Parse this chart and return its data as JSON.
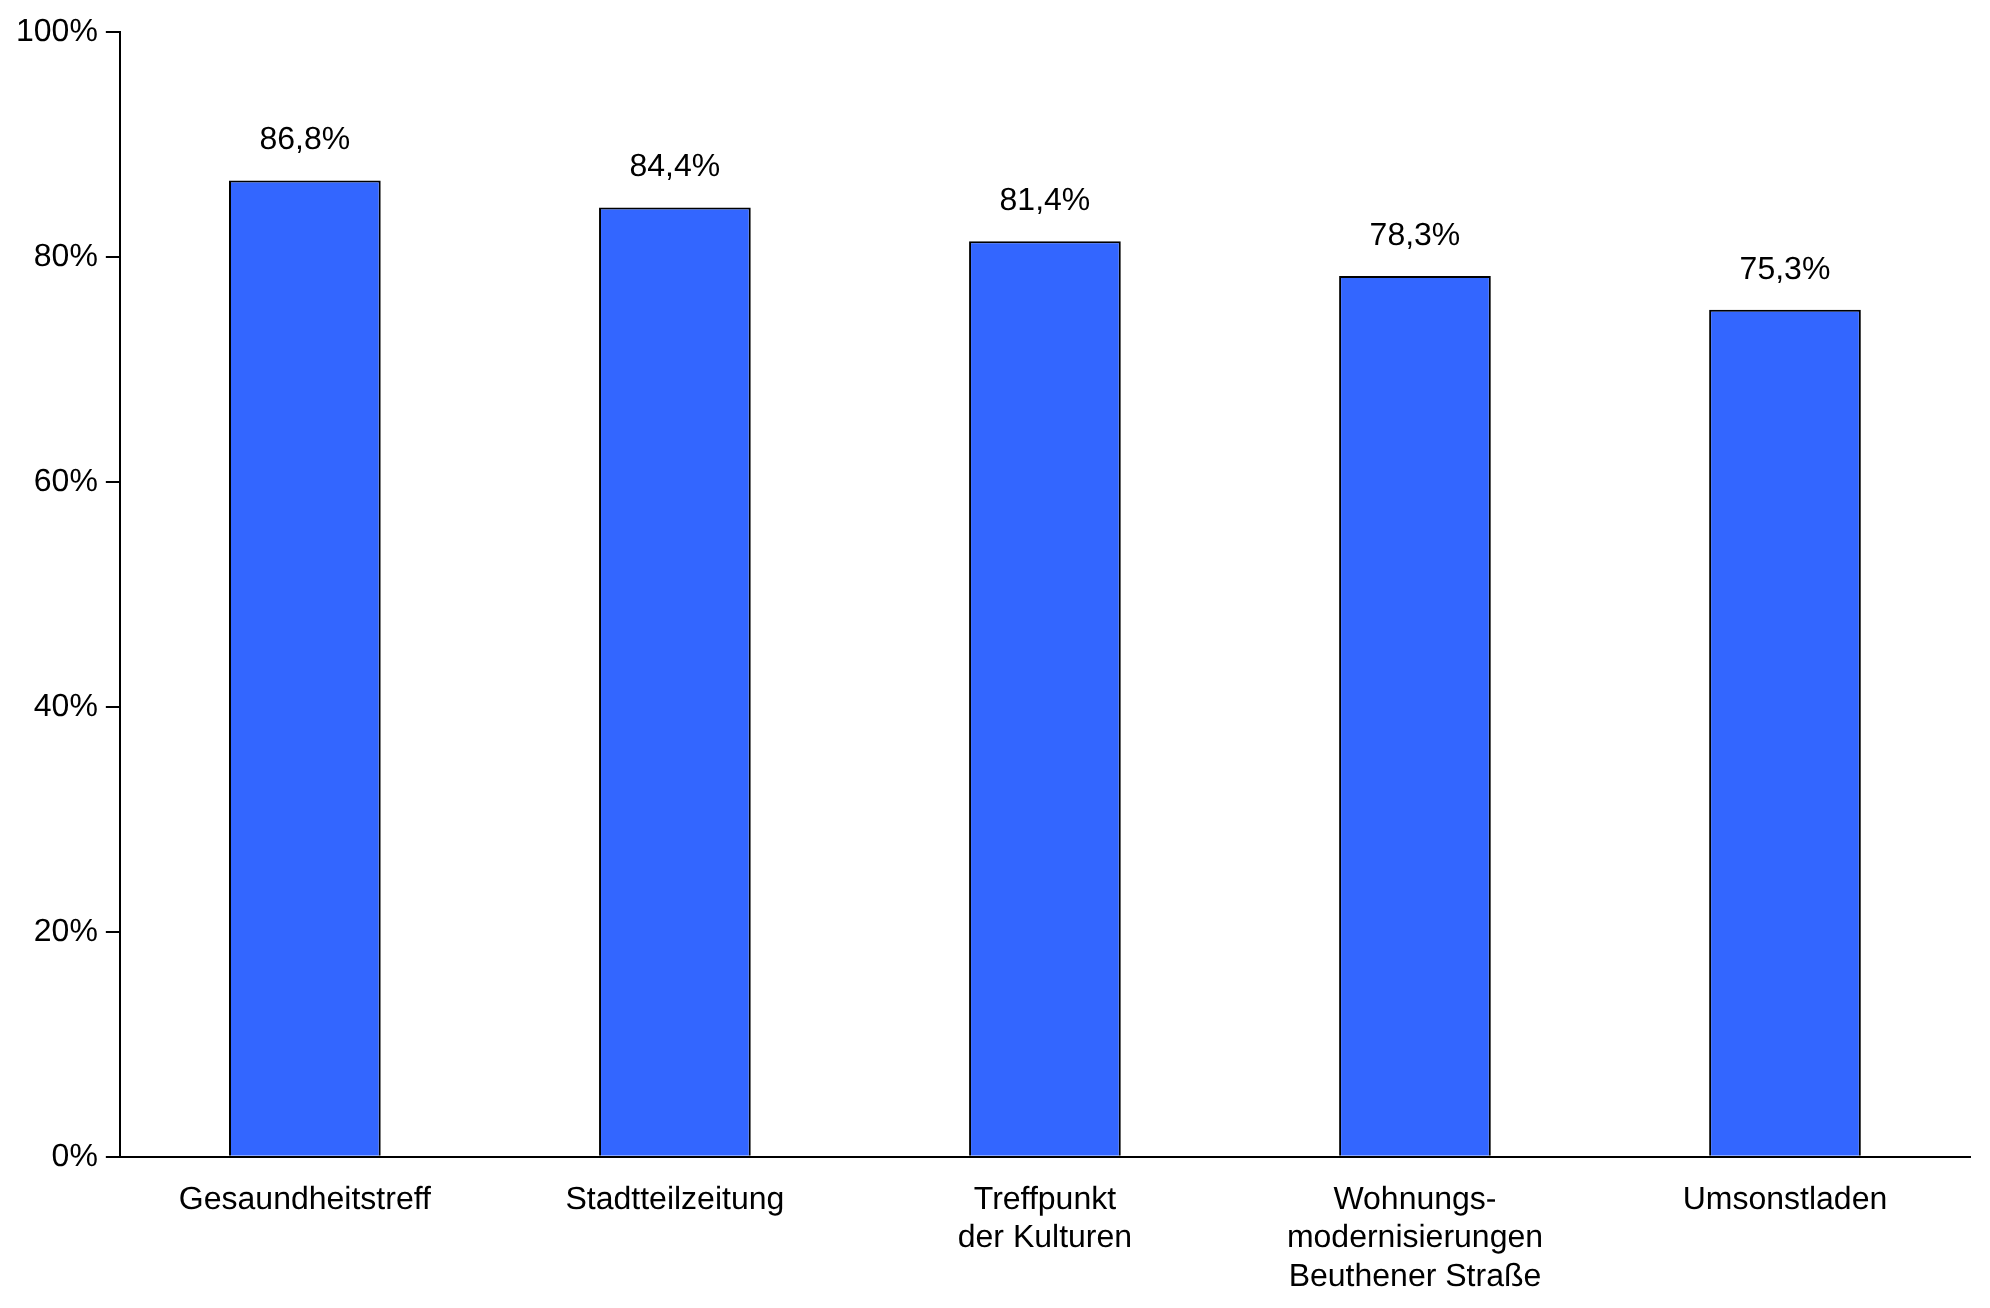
{
  "chart_data": {
    "type": "bar",
    "categories": [
      "Gesaundheitstreff",
      "Stadtteilzeitung",
      "Treffpunkt\nder Kulturen",
      "Wohnungs-\nmodernisierungen\nBeuthener Straße",
      "Umsonstladen"
    ],
    "values": [
      86.8,
      84.4,
      81.4,
      78.3,
      75.3
    ],
    "value_labels": [
      "86,8%",
      "84,4%",
      "81,4%",
      "78,3%",
      "75,3%"
    ],
    "color": "#3366ff",
    "ylim": [
      0,
      100
    ],
    "yticks": [
      {
        "value": 0,
        "label": "0%"
      },
      {
        "value": 20,
        "label": "20%"
      },
      {
        "value": 40,
        "label": "40%"
      },
      {
        "value": 60,
        "label": "60%"
      },
      {
        "value": 80,
        "label": "80%"
      },
      {
        "value": 100,
        "label": "100%"
      }
    ],
    "grid": false,
    "legend": false
  }
}
